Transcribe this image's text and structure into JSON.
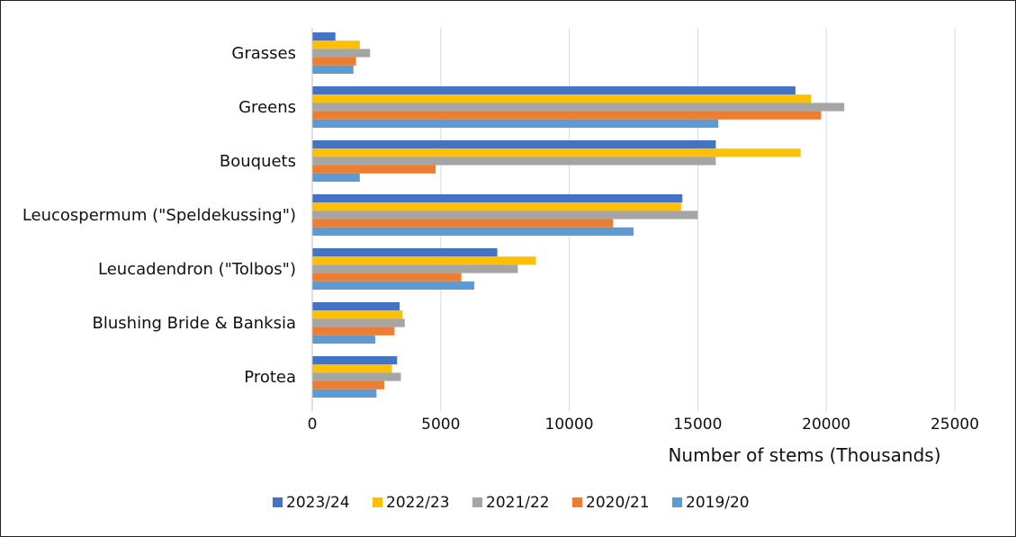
{
  "chart_data": {
    "type": "bar",
    "orientation": "horizontal",
    "title": "",
    "xlabel": "Number of stems (Thousands)",
    "ylabel": "",
    "xlim": [
      0,
      25000
    ],
    "xticks": [
      0,
      5000,
      10000,
      15000,
      20000,
      25000
    ],
    "xtick_labels": [
      "0",
      "5000",
      "10000",
      "15000",
      "20000",
      "25000"
    ],
    "grid": "vertical",
    "legend_position": "bottom",
    "categories": [
      "Grasses",
      "Greens",
      "Bouquets",
      "Leucospermum (\"Speldekussing\")",
      "Leucadendron (\"Tolbos\")",
      "Blushing Bride & Banksia",
      "Protea"
    ],
    "series": [
      {
        "name": "2023/24",
        "color": "#4472c4",
        "values": [
          900,
          18800,
          15700,
          14400,
          7200,
          3400,
          3300
        ]
      },
      {
        "name": "2022/23",
        "color": "#ffc000",
        "values": [
          1850,
          19400,
          19000,
          14350,
          8700,
          3500,
          3100
        ]
      },
      {
        "name": "2021/22",
        "color": "#a5a5a5",
        "values": [
          2250,
          20700,
          15700,
          15000,
          8000,
          3600,
          3450
        ]
      },
      {
        "name": "2020/21",
        "color": "#ed7d31",
        "values": [
          1700,
          19800,
          4800,
          11700,
          5800,
          3200,
          2800
        ]
      },
      {
        "name": "2019/20",
        "color": "#5b9bd5",
        "values": [
          1600,
          15800,
          1850,
          12500,
          6300,
          2450,
          2500
        ]
      }
    ]
  }
}
